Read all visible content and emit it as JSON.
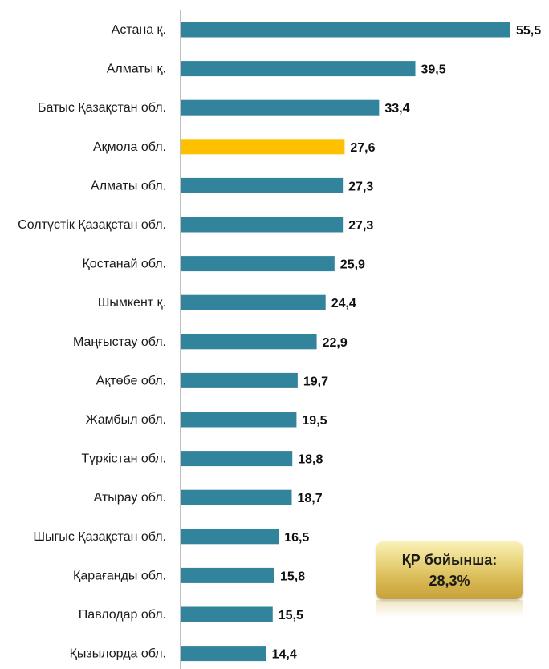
{
  "chart_data": {
    "type": "bar",
    "orientation": "horizontal",
    "categories": [
      "Астана қ.",
      "Алматы қ.",
      "Батыс Қазақстан обл.",
      "Ақмола обл.",
      "Алматы обл.",
      "Солтүстік Қазақстан обл.",
      "Қостанай обл.",
      "Шымкент қ.",
      "Маңғыстау обл.",
      "Ақтөбе обл.",
      "Жамбыл обл.",
      "Түркістан обл.",
      "Атырау обл.",
      "Шығыс Қазақстан обл.",
      "Қарағанды обл.",
      "Павлодар обл.",
      "Қызылорда обл."
    ],
    "values": [
      55.5,
      39.5,
      33.4,
      27.6,
      27.3,
      27.3,
      25.9,
      24.4,
      22.9,
      19.7,
      19.5,
      18.8,
      18.7,
      16.5,
      15.8,
      15.5,
      14.4
    ],
    "value_labels": [
      "55,5",
      "39,5",
      "33,4",
      "27,6",
      "27,3",
      "27,3",
      "25,9",
      "24,4",
      "22,9",
      "19,7",
      "19,5",
      "18,8",
      "18,7",
      "16,5",
      "15,8",
      "15,5",
      "14,4"
    ],
    "highlight_category": "Ақмола обл.",
    "xlim": [
      0,
      55.5
    ],
    "grid": false,
    "colors": {
      "bar": "#31849b",
      "highlight": "#ffc000",
      "axis": "#7f7f7f"
    }
  },
  "summary": {
    "line1": "ҚР бойынша:",
    "line2": "28,3%"
  }
}
